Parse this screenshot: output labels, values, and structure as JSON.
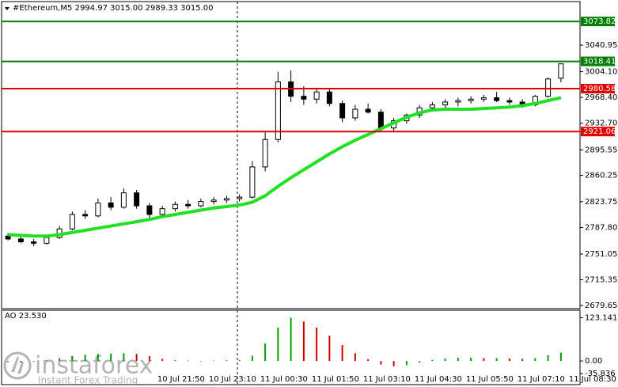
{
  "chart_data": [
    {
      "type": "candlestick",
      "title": "#Ethereum,M5  2994.97 3015.00 2989.33 3015.00",
      "categories": [
        null,
        null,
        null,
        null,
        null,
        null,
        null,
        null,
        null,
        null,
        null,
        "10 Jul 21:50",
        null,
        null,
        null,
        "10 Jul 23:10",
        null,
        null,
        null,
        "11 Jul 00:30",
        null,
        null,
        null,
        "11 Jul 01:50",
        null,
        null,
        null,
        "11 Jul 03:10",
        null,
        null,
        null,
        "11 Jul 04:30",
        null,
        null,
        null,
        "11 Jul 05:50",
        null,
        null,
        null,
        "11 Jul 07:10",
        null,
        null,
        null,
        "11 Jul 08:30"
      ],
      "open": [
        2776,
        2772,
        2768,
        2766,
        2774,
        2786,
        2806,
        2804,
        2822,
        2816,
        2836,
        2818,
        2806,
        2814,
        2820,
        2818,
        2824,
        2826,
        2828,
        2830,
        2872,
        2910,
        2990,
        2970,
        2966,
        2976,
        2960,
        2940,
        2952,
        2948,
        2926,
        2936,
        2944,
        2954,
        2958,
        2962,
        2964,
        2966,
        2968,
        2964,
        2962,
        2958,
        2970,
        2994.97
      ],
      "high": [
        2780,
        2776,
        2772,
        2776,
        2790,
        2810,
        2812,
        2828,
        2830,
        2842,
        2840,
        2822,
        2818,
        2824,
        2826,
        2828,
        2830,
        2832,
        2834,
        2880,
        2920,
        3004,
        3006,
        2984,
        2982,
        2980,
        2964,
        2958,
        2960,
        2952,
        2940,
        2946,
        2958,
        2962,
        2966,
        2968,
        2970,
        2972,
        2976,
        2968,
        2966,
        2972,
        2996,
        3015
      ],
      "low": [
        2770,
        2766,
        2762,
        2764,
        2772,
        2784,
        2800,
        2802,
        2812,
        2814,
        2814,
        2800,
        2802,
        2810,
        2814,
        2816,
        2820,
        2822,
        2824,
        2828,
        2866,
        2906,
        2962,
        2958,
        2960,
        2956,
        2934,
        2936,
        2946,
        2920,
        2920,
        2932,
        2940,
        2950,
        2954,
        2956,
        2960,
        2962,
        2962,
        2958,
        2954,
        2956,
        2968,
        2989.33
      ],
      "close": [
        2772,
        2768,
        2766,
        2774,
        2786,
        2806,
        2804,
        2822,
        2816,
        2836,
        2818,
        2806,
        2814,
        2820,
        2818,
        2824,
        2826,
        2828,
        2830,
        2872,
        2910,
        2990,
        2970,
        2966,
        2976,
        2960,
        2940,
        2952,
        2948,
        2926,
        2936,
        2944,
        2954,
        2958,
        2962,
        2964,
        2966,
        2968,
        2964,
        2962,
        2958,
        2970,
        2994,
        3015
      ],
      "moving_average": {
        "color": "#22e022",
        "values": [
          2778,
          2777,
          2776,
          2776,
          2778,
          2781,
          2784,
          2787,
          2790,
          2793,
          2796,
          2799,
          2803,
          2806,
          2809,
          2812,
          2815,
          2817,
          2819,
          2823,
          2832,
          2845,
          2857,
          2868,
          2879,
          2890,
          2900,
          2909,
          2917,
          2925,
          2933,
          2941,
          2947,
          2951,
          2952,
          2952,
          2952,
          2953,
          2954,
          2955,
          2957,
          2960,
          2964,
          2968
        ]
      },
      "levels": [
        {
          "value": 3073.82,
          "color": "#008000"
        },
        {
          "value": 3018.41,
          "color": "#008000"
        },
        {
          "value": 2980.58,
          "color": "#e00000"
        },
        {
          "value": 2921.06,
          "color": "#e00000"
        }
      ],
      "ylim": [
        2675.3,
        3101.4
      ],
      "yticks": [
        3040.95,
        {
          "value": 3004.1,
          "label": "3004.10"
        },
        {
          "value": 2968.4,
          "label": "2968.40"
        },
        {
          "value": 2932.7,
          "label": "2932.70"
        },
        2895.55,
        2860.25,
        2823.75,
        {
          "value": 2787.8,
          "label": "2787.80"
        },
        2751.05,
        2715.35,
        2679.65
      ]
    },
    {
      "type": "bar",
      "title": "AO 23.530",
      "values": [
        -3,
        -4,
        -2,
        2,
        8,
        14,
        18,
        20,
        21,
        22,
        20,
        14,
        6,
        2,
        1,
        0,
        1,
        2,
        3,
        15,
        50,
        95,
        123,
        112,
        95,
        72,
        45,
        22,
        5,
        -10,
        -15,
        -12,
        -4,
        3,
        7,
        9,
        9,
        8,
        8,
        7,
        6,
        8,
        16,
        23.53
      ],
      "up_color": "#00a000",
      "down_color": "#d00000",
      "ylim": [
        -65,
        142
      ],
      "yticks": [
        123.141,
        {
          "value": 0,
          "label": "0.00"
        },
        -35.836
      ]
    }
  ],
  "watermark": {
    "brand": "instaforex",
    "tagline": "Instant Forex Trading"
  }
}
